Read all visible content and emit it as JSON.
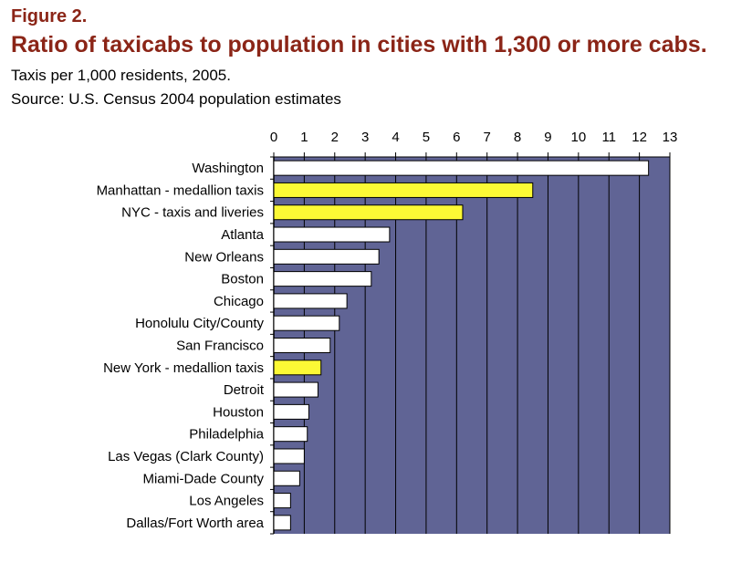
{
  "header": {
    "figure": "Figure 2.",
    "title": "Ratio of taxicabs to population in cities with 1,300 or more cabs.",
    "subtitle": "Taxis per 1,000 residents, 2005.",
    "source": "Source: U.S. Census 2004 population estimates"
  },
  "colors": {
    "title": "#8b2517",
    "plot_background": "#606495",
    "bar_default": "#ffffff",
    "bar_highlight": "#fcf935",
    "bar_edge": "#000000"
  },
  "chart_data": {
    "type": "bar",
    "orientation": "horizontal",
    "title": "Ratio of taxicabs to population in cities with 1,300 or more cabs.",
    "xlabel": "Taxis per 1,000 residents, 2005.",
    "ylabel": "",
    "xlim": [
      0,
      13
    ],
    "x_ticks": [
      0,
      1,
      2,
      3,
      4,
      5,
      6,
      7,
      8,
      9,
      10,
      11,
      12,
      13
    ],
    "x_axis_position": "top",
    "grid": true,
    "categories": [
      "Washington",
      "Manhattan - medallion taxis",
      "NYC - taxis and liveries",
      "Atlanta",
      "New Orleans",
      "Boston",
      "Chicago",
      "Honolulu City/County",
      "San Francisco",
      "New York - medallion taxis",
      "Detroit",
      "Houston",
      "Philadelphia",
      "Las Vegas (Clark County)",
      "Miami-Dade County",
      "Los Angeles",
      "Dallas/Fort Worth area"
    ],
    "values": [
      12.3,
      8.5,
      6.2,
      3.8,
      3.45,
      3.2,
      2.4,
      2.15,
      1.85,
      1.55,
      1.45,
      1.15,
      1.1,
      1.0,
      0.85,
      0.55,
      0.55
    ],
    "highlighted": [
      false,
      true,
      true,
      false,
      false,
      false,
      false,
      false,
      false,
      true,
      false,
      false,
      false,
      false,
      false,
      false,
      false
    ]
  }
}
